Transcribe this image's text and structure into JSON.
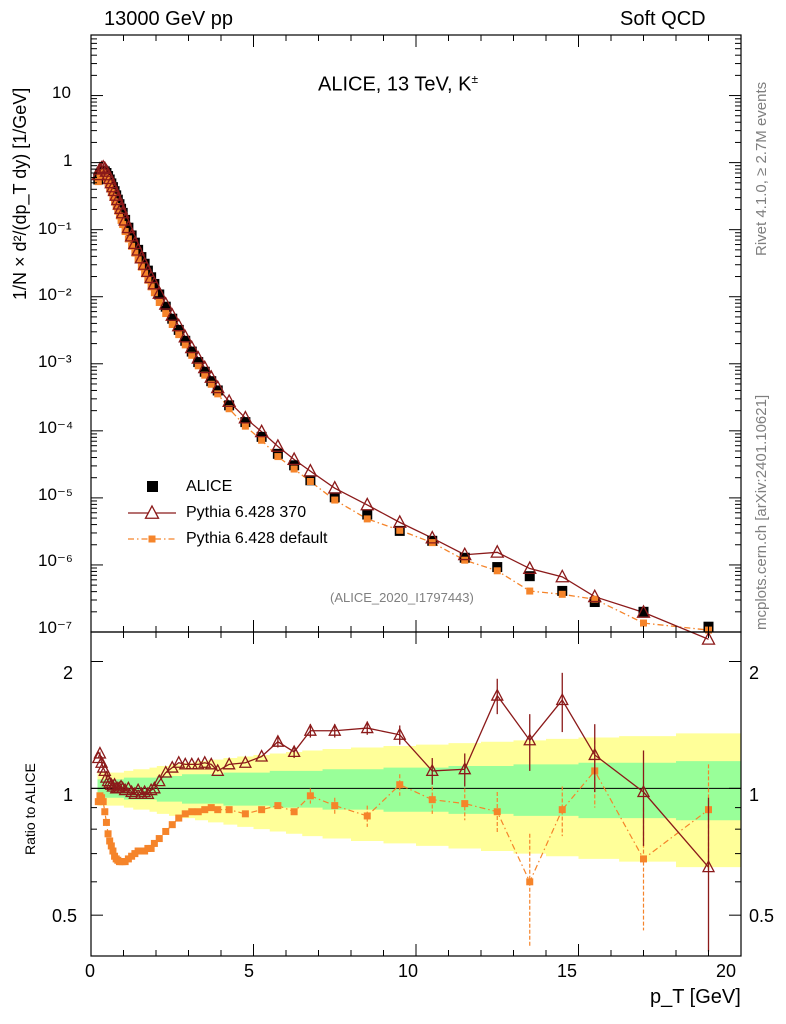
{
  "header": {
    "left": "13000 GeV pp",
    "right": "Soft QCD"
  },
  "side_labels": {
    "rivet": "Rivet 4.1.0, ≥ 2.7M events",
    "mcplots": "mcplots.cern.ch [arXiv:2401.10621]"
  },
  "main_plot": {
    "title": "ALICE, 13 TeV, K",
    "title_sup": "±",
    "analysis_id": "(ALICE_2020_I1797443)",
    "ylabel": "1/N × d²/(dp_T dy) [1/GeV]",
    "yticks": [
      "10⁻⁷",
      "10⁻⁶",
      "10⁻⁵",
      "10⁻⁴",
      "10⁻³",
      "10⁻²",
      "10⁻¹",
      "1",
      "10"
    ]
  },
  "ratio_plot": {
    "ylabel": "Ratio to ALICE",
    "yticks_left": [
      "0.5",
      "1",
      "2"
    ],
    "yticks_right": [
      "0.5",
      "1",
      "2"
    ]
  },
  "xaxis": {
    "label": "p_T [GeV]",
    "ticks": [
      "0",
      "5",
      "10",
      "15",
      "20"
    ]
  },
  "legend": [
    {
      "name": "ALICE",
      "style": "data"
    },
    {
      "name": "Pythia 6.428 370",
      "style": "triangle-line"
    },
    {
      "name": "Pythia 6.428 default",
      "style": "square-dashdot"
    }
  ],
  "colors": {
    "data": "#000000",
    "p370": "#8b1a1a",
    "pdefault": "#f5842a",
    "band_inner": "#99ff99",
    "band_outer": "#ffff99"
  },
  "chart_data": {
    "type": "scatter",
    "title": "ALICE, 13 TeV, K±",
    "xlabel": "p_T [GeV]",
    "ylabel": "1/N × d²/(dp_T dy) [1/GeV]",
    "xlim": [
      0,
      20
    ],
    "ylim": [
      1e-07,
      80
    ],
    "yscale": "log",
    "ratio_ylim": [
      0.4,
      2.35
    ],
    "ratio_yscale": "log",
    "x": [
      0.225,
      0.275,
      0.325,
      0.375,
      0.425,
      0.475,
      0.525,
      0.575,
      0.625,
      0.675,
      0.725,
      0.775,
      0.825,
      0.875,
      0.925,
      0.975,
      1.05,
      1.15,
      1.25,
      1.35,
      1.45,
      1.55,
      1.65,
      1.75,
      1.85,
      1.95,
      2.1,
      2.3,
      2.5,
      2.7,
      2.9,
      3.1,
      3.3,
      3.5,
      3.7,
      3.9,
      4.25,
      4.75,
      5.25,
      5.75,
      6.25,
      6.75,
      7.5,
      8.5,
      9.5,
      10.5,
      11.5,
      12.5,
      13.5,
      14.5,
      15.5,
      17.0,
      19.0
    ],
    "series": [
      {
        "name": "ALICE",
        "values": [
          0.56,
          0.66,
          0.72,
          0.76,
          0.74,
          0.7,
          0.63,
          0.56,
          0.49,
          0.43,
          0.375,
          0.325,
          0.28,
          0.24,
          0.205,
          0.178,
          0.14,
          0.107,
          0.082,
          0.064,
          0.05,
          0.039,
          0.031,
          0.0245,
          0.0195,
          0.0155,
          0.0108,
          0.0071,
          0.0047,
          0.0032,
          0.0022,
          0.00152,
          0.00106,
          0.00076,
          0.00055,
          0.0004,
          0.00024,
          0.000135,
          8.13e-05,
          4.54e-05,
          3.06e-05,
          1.83e-05,
          1.02e-05,
          5.65e-06,
          3.22e-06,
          2.29e-06,
          1.28e-06,
          9.3e-07,
          6.8e-07,
          4.1e-07,
          2.8e-07,
          2e-07,
          1.2e-07
        ],
        "uncertainty_band": {
          "inner_rel": [
            0.05,
            0.05,
            0.05,
            0.05,
            0.05,
            0.05,
            0.05,
            0.05,
            0.05,
            0.05,
            0.05,
            0.05,
            0.05,
            0.05,
            0.05,
            0.05,
            0.06,
            0.06,
            0.06,
            0.06,
            0.06,
            0.06,
            0.06,
            0.06,
            0.06,
            0.06,
            0.07,
            0.07,
            0.07,
            0.07,
            0.08,
            0.08,
            0.08,
            0.08,
            0.08,
            0.08,
            0.09,
            0.09,
            0.09,
            0.1,
            0.1,
            0.1,
            0.11,
            0.11,
            0.12,
            0.12,
            0.13,
            0.13,
            0.14,
            0.14,
            0.15,
            0.15,
            0.16
          ],
          "outer_rel": [
            0.09,
            0.09,
            0.09,
            0.09,
            0.09,
            0.09,
            0.09,
            0.09,
            0.09,
            0.09,
            0.09,
            0.09,
            0.09,
            0.09,
            0.09,
            0.09,
            0.1,
            0.1,
            0.1,
            0.11,
            0.11,
            0.11,
            0.11,
            0.11,
            0.12,
            0.12,
            0.13,
            0.13,
            0.14,
            0.14,
            0.15,
            0.15,
            0.16,
            0.16,
            0.17,
            0.17,
            0.18,
            0.19,
            0.2,
            0.21,
            0.22,
            0.23,
            0.24,
            0.25,
            0.26,
            0.27,
            0.28,
            0.29,
            0.3,
            0.31,
            0.32,
            0.33,
            0.35
          ]
        }
      },
      {
        "name": "Pythia 6.428 370",
        "ratio": [
          1.18,
          1.21,
          1.15,
          1.12,
          1.1,
          1.06,
          1.04,
          1.03,
          1.02,
          1.01,
          1.02,
          1.0,
          1.0,
          1.0,
          1.01,
          1.0,
          0.99,
          1.0,
          0.98,
          0.97,
          0.99,
          0.97,
          0.98,
          0.97,
          0.99,
          1.0,
          1.04,
          1.09,
          1.12,
          1.15,
          1.14,
          1.14,
          1.14,
          1.15,
          1.14,
          1.1,
          1.14,
          1.15,
          1.19,
          1.29,
          1.22,
          1.37,
          1.37,
          1.39,
          1.34,
          1.1,
          1.11,
          1.66,
          1.3,
          1.62,
          1.2,
          0.98,
          0.65
        ],
        "ratio_err": [
          0.03,
          0.03,
          0.03,
          0.03,
          0.02,
          0.02,
          0.02,
          0.02,
          0.02,
          0.02,
          0.02,
          0.02,
          0.02,
          0.02,
          0.02,
          0.02,
          0.02,
          0.02,
          0.02,
          0.02,
          0.02,
          0.02,
          0.02,
          0.02,
          0.02,
          0.02,
          0.02,
          0.02,
          0.02,
          0.02,
          0.02,
          0.02,
          0.02,
          0.02,
          0.02,
          0.02,
          0.02,
          0.03,
          0.03,
          0.04,
          0.04,
          0.05,
          0.05,
          0.05,
          0.07,
          0.08,
          0.1,
          0.16,
          0.2,
          0.26,
          0.22,
          0.25,
          0.3
        ]
      },
      {
        "name": "Pythia 6.428 default",
        "ratio": [
          0.93,
          0.96,
          0.95,
          0.93,
          0.88,
          0.83,
          0.78,
          0.75,
          0.73,
          0.71,
          0.69,
          0.68,
          0.675,
          0.67,
          0.67,
          0.67,
          0.67,
          0.68,
          0.69,
          0.7,
          0.71,
          0.71,
          0.71,
          0.72,
          0.72,
          0.74,
          0.76,
          0.79,
          0.82,
          0.85,
          0.87,
          0.88,
          0.88,
          0.89,
          0.9,
          0.89,
          0.89,
          0.87,
          0.89,
          0.91,
          0.88,
          0.96,
          0.91,
          0.86,
          1.02,
          0.94,
          0.92,
          0.88,
          0.6,
          0.89,
          1.1,
          0.68,
          0.89
        ],
        "ratio_err": [
          0.02,
          0.02,
          0.02,
          0.02,
          0.02,
          0.02,
          0.02,
          0.02,
          0.02,
          0.02,
          0.02,
          0.02,
          0.02,
          0.02,
          0.02,
          0.02,
          0.02,
          0.02,
          0.02,
          0.02,
          0.02,
          0.02,
          0.02,
          0.02,
          0.02,
          0.02,
          0.02,
          0.02,
          0.02,
          0.02,
          0.02,
          0.02,
          0.02,
          0.02,
          0.02,
          0.02,
          0.02,
          0.02,
          0.03,
          0.03,
          0.03,
          0.04,
          0.04,
          0.05,
          0.06,
          0.07,
          0.08,
          0.1,
          0.18,
          0.12,
          0.2,
          0.22,
          0.25
        ]
      }
    ]
  }
}
